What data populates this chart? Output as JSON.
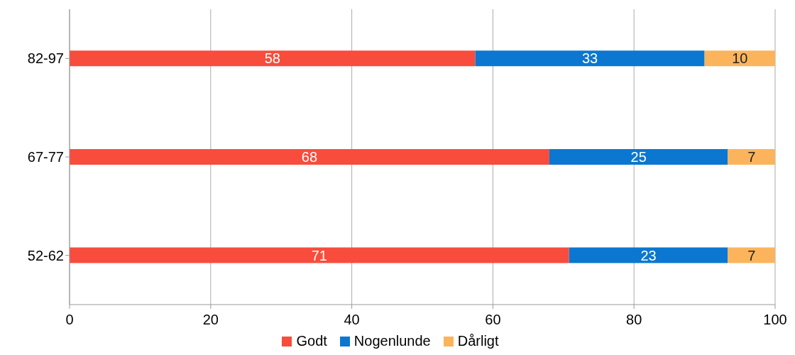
{
  "chart_data": {
    "type": "bar",
    "orientation": "horizontal",
    "stacked": true,
    "categories": [
      "82-97",
      "67-77",
      "52-62"
    ],
    "series": [
      {
        "name": "Godt",
        "color": "#f84c3c",
        "values": [
          57.5,
          68,
          70.8
        ],
        "value_labels": [
          "58",
          "68",
          "71"
        ]
      },
      {
        "name": "Nogenlunde",
        "color": "#0b77d0",
        "values": [
          32.5,
          25.3,
          22.5
        ],
        "value_labels": [
          "33",
          "25",
          "23"
        ]
      },
      {
        "name": "Dårligt",
        "color": "#fbb45c",
        "values": [
          10,
          6.7,
          6.7
        ],
        "value_labels": [
          "10",
          "7",
          "7"
        ]
      }
    ],
    "xlim": [
      0,
      100
    ],
    "xticks": [
      0,
      20,
      40,
      60,
      80,
      100
    ],
    "grid": "x",
    "legend": "bottom"
  }
}
